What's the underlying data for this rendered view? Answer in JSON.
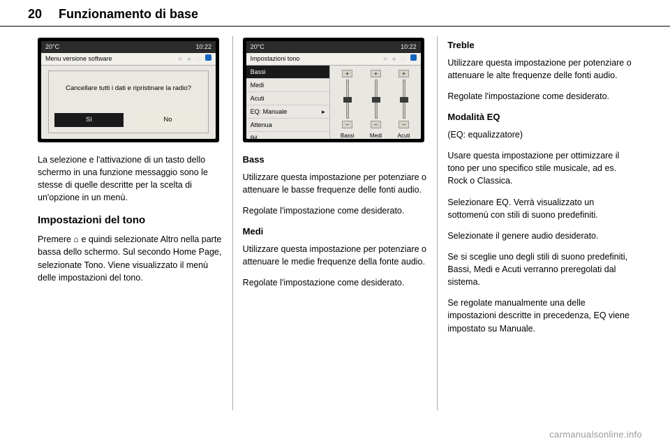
{
  "header": {
    "page_number": "20",
    "section": "Funzionamento di base"
  },
  "col1": {
    "screenshot": {
      "temp": "20°C",
      "time": "10:22",
      "menu_title": "Menu versione software",
      "dialog_question": "Cancellare tutti i dati e ripristinare la radio?",
      "btn_yes": "Sì",
      "btn_no": "No"
    },
    "p1": "La selezione e l'attivazione di un tasto dello schermo in una funzione messaggio sono le stesse di quelle descritte per la scelta di un'opzione in un menù.",
    "h_tone": "Impostazioni del tono",
    "p2a": "Premere ",
    "home_icon": "⌂",
    "p2b": " e quindi selezionate Altro nella parte bassa dello schermo. Sul secondo Home Page, selezionate Tono. Viene visualizzato il menù delle impostazioni del tono."
  },
  "col2": {
    "screenshot": {
      "temp": "20°C",
      "time": "10:22",
      "menu_title": "Impostazioni tono",
      "items": {
        "bassi": "Bassi",
        "medi": "Medi",
        "acuti": "Acuti",
        "eq": "EQ: Manuale",
        "attenua": "Attenua",
        "bil": "Bil"
      },
      "arrow": "▸",
      "slider_labels": {
        "bassi": "Bassi",
        "medi": "Medi",
        "acuti": "Acuti"
      },
      "plus": "+",
      "minus": "–",
      "thumb_positions": {
        "bassi": 24,
        "medi": 24,
        "acuti": 24
      }
    },
    "h_bass": "Bass",
    "p_bass1": "Utilizzare questa impostazione per potenziare o attenuare le basse frequenze delle fonti audio.",
    "p_bass2": "Regolate l'impostazione come desiderato.",
    "h_medi": "Medi",
    "p_medi1": "Utilizzare questa impostazione per potenziare o attenuare le medie frequenze della fonte audio.",
    "p_medi2": "Regolate l'impostazione come desiderato."
  },
  "col3": {
    "h_treble": "Treble",
    "p_treble1": "Utilizzare questa impostazione per potenziare o attenuare le alte frequenze delle fonti audio.",
    "p_treble2": "Regolate l'impostazione come desiderato.",
    "h_eq": "Modalità EQ",
    "p_eq_note": "(EQ: equalizzatore)",
    "p_eq1": "Usare questa impostazione per ottimizzare il tono per uno specifico stile musicale, ad es. Rock o Classica.",
    "p_eq2": "Selezionare EQ. Verrà visualizzato un sottomenù con stili di suono predefiniti.",
    "p_eq3": "Selezionate il genere audio desiderato.",
    "p_eq4": "Se si sceglie uno degli stili di suono predefiniti, Bassi, Medi e Acuti verranno preregolati dal sistema.",
    "p_eq5": "Se regolate manualmente una delle impostazioni descritte in precedenza, EQ viene impostato su Manuale."
  },
  "watermark": "carmanualsonline.info"
}
